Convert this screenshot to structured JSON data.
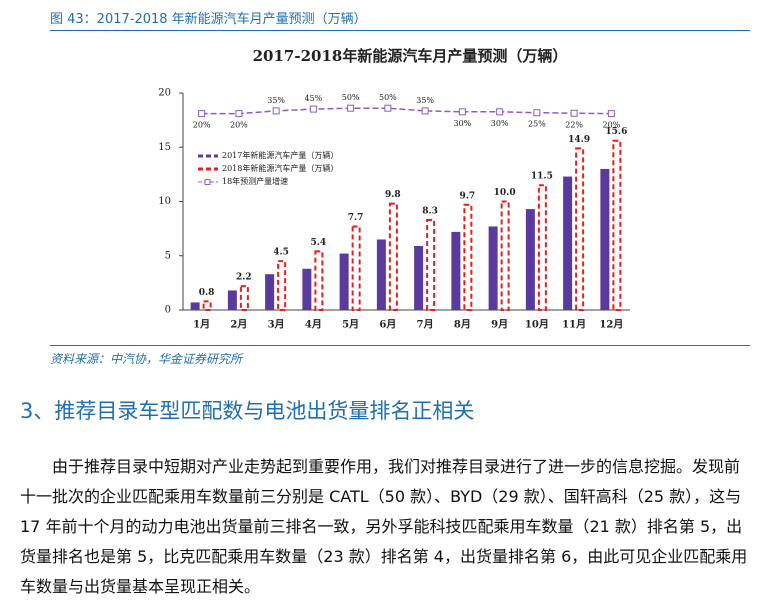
{
  "caption": "图 43：2017-2018 年新能源汽车月产量预测（万辆）",
  "chart_data": {
    "type": "bar",
    "title": "2017-2018年新能源汽车月产量预测（万辆）",
    "categories": [
      "1月",
      "2月",
      "3月",
      "4月",
      "5月",
      "6月",
      "7月",
      "8月",
      "9月",
      "10月",
      "11月",
      "12月"
    ],
    "series": [
      {
        "name": "2017年新能源汽车产量（万辆）",
        "color": "#5a3a9c",
        "values": [
          0.7,
          1.8,
          3.3,
          3.8,
          5.2,
          6.5,
          5.9,
          7.2,
          7.7,
          9.3,
          12.3,
          13.0
        ]
      },
      {
        "name": "2018年新能源汽车产量（万辆）",
        "color": "#ee1c1c",
        "values": [
          0.8,
          2.2,
          4.5,
          5.4,
          7.7,
          9.8,
          8.3,
          9.7,
          10.0,
          11.5,
          14.9,
          15.6
        ],
        "value_labels": [
          "0.8",
          "2.2",
          "4.5",
          "5.4",
          "7.7",
          "9.8",
          "8.3",
          "9.7",
          "10.0",
          "11.5",
          "14.9",
          "15.6"
        ]
      },
      {
        "name": "18年预测产量增速",
        "color": "#8a5cc8",
        "type": "line",
        "axis": "y2",
        "values": [
          20,
          20,
          35,
          45,
          50,
          50,
          35,
          30,
          30,
          25,
          22,
          20
        ],
        "value_labels": [
          "20%",
          "20%",
          "35%",
          "45%",
          "50%",
          "50%",
          "35%",
          "30%",
          "30%",
          "25%",
          "22%",
          "20%"
        ]
      }
    ],
    "ylim": [
      0,
      20
    ],
    "yticks": [
      0,
      5,
      10,
      15,
      20
    ],
    "y2lim": [
      -1066,
      134
    ]
  },
  "source": "资料来源：中汽协，华金证券研究所",
  "heading": "3、推荐目录车型匹配数与电池出货量排名正相关",
  "paragraph": "由于推荐目录中短期对产业走势起到重要作用，我们对推荐目录进行了进一步的信息挖掘。发现前十一批次的企业匹配乘用车数量前三分别是 CATL（50 款）、BYD（29 款）、国轩高科（25 款），这与 17 年前十个月的动力电池出货量前三排名一致，另外孚能科技匹配乘用车数量（21 款）排名第 5，出货量排名也是第 5，比克匹配乘用车数量（23 款）排名第 4，出货量排名第 6，由此可见企业匹配乘用车数量与出货量基本呈现正相关。"
}
